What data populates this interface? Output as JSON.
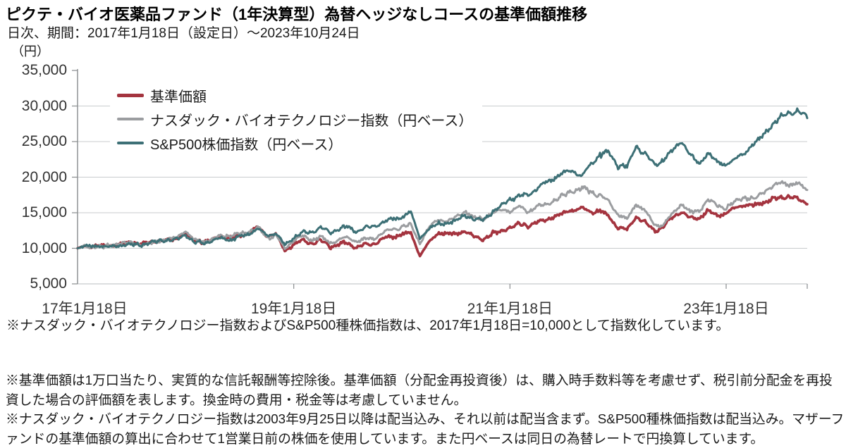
{
  "title": "ピクテ・バイオ医薬品ファンド（1年決算型）為替ヘッジなしコースの基準価額推移",
  "subtitle": "日次、期間：2017年1月18日（設定日）～2023年10月24日",
  "y_unit": "（円）",
  "notes": {
    "index_note": "※ナスダック・バイオテクノロジー指数およびS&P500種株価指数は、2017年1月18日=10,000として指数化しています。",
    "nav_note": "※基準価額は1万口当たり、実質的な信託報酬等控除後。基準価額（分配金再投資後）は、購入時手数料等を考慮せず、税引前分配金を再投資した場合の評価額を表します。換金時の費用・税金等は考慮していません。",
    "dividend_note": "※ナスダック・バイオテクノロジー指数は2003年9月25日以降は配当込み、それ以前は配当含まず。S&P500種株価指数は配当込み。マザーファンドの基準価額の算出に合わせて1営業日前の株価を使用しています。また円ベースは同日の為替レートで円換算しています。"
  },
  "chart_data": {
    "type": "line",
    "x_start": "2017-01-18",
    "x_end": "2023-10-24",
    "x_tick_labels": [
      "17年1月18日",
      "19年1月18日",
      "21年1月18日",
      "23年1月18日"
    ],
    "x_tick_month_offsets": [
      0,
      24,
      48,
      72
    ],
    "y_ticks": [
      5000,
      10000,
      15000,
      20000,
      25000,
      30000,
      35000
    ],
    "ylim": [
      5000,
      35000
    ],
    "grid_color": "#c8cbcd",
    "axis_color": "#898c8e",
    "series": [
      {
        "key": "nav",
        "name": "基準価額",
        "color": "#a4343f",
        "line_width": 3.6,
        "monthly_values": [
          10000,
          10150,
          10320,
          10280,
          10560,
          10720,
          10850,
          10520,
          10720,
          11020,
          11220,
          11350,
          12250,
          11000,
          10850,
          11100,
          11500,
          11600,
          11700,
          12200,
          13000,
          11700,
          12000,
          9600,
          10600,
          11100,
          10800,
          11000,
          10300,
          10500,
          10700,
          10200,
          10500,
          10700,
          11300,
          11700,
          11900,
          12200,
          8950,
          10800,
          12100,
          12000,
          12100,
          12400,
          11800,
          11200,
          12000,
          12300,
          12800,
          13500,
          13200,
          13800,
          14000,
          14400,
          14800,
          15400,
          15600,
          15300,
          15400,
          14400,
          12900,
          12500,
          14500,
          13600,
          12600,
          13000,
          14300,
          15200,
          14100,
          14300,
          15200,
          14700,
          14900,
          15700,
          16100,
          16000,
          16400,
          16800,
          17100,
          17200,
          16900,
          16200
        ]
      },
      {
        "key": "nasdaq_biotech_jpy",
        "name": "ナスダック・バイオテクノロジー指数（円ベース）",
        "color": "#9b9da0",
        "line_width": 3.0,
        "monthly_values": [
          10000,
          10180,
          10350,
          10230,
          10480,
          10640,
          10780,
          10470,
          10700,
          11050,
          11300,
          11500,
          12400,
          11150,
          11000,
          11300,
          11700,
          11800,
          11900,
          12400,
          12900,
          11600,
          11900,
          9900,
          11100,
          11600,
          11300,
          11600,
          10900,
          11200,
          11400,
          10900,
          11200,
          11500,
          12300,
          12800,
          13000,
          13300,
          10600,
          12900,
          14100,
          13900,
          14500,
          15100,
          14300,
          14000,
          14900,
          15400,
          15300,
          15900,
          15100,
          15900,
          16000,
          16900,
          17400,
          18200,
          18400,
          17900,
          17500,
          16500,
          14900,
          14000,
          16300,
          15200,
          13300,
          13300,
          14800,
          16400,
          15000,
          15200,
          16700,
          16000,
          15600,
          16700,
          17300,
          16900,
          17700,
          18400,
          19200,
          19000,
          19300,
          18200
        ]
      },
      {
        "key": "sp500_jpy",
        "name": "S&P500株価指数（円ベース）",
        "color": "#3d7076",
        "line_width": 3.0,
        "monthly_values": [
          10000,
          10250,
          10300,
          10180,
          10380,
          10480,
          10580,
          10380,
          10680,
          10980,
          11180,
          11300,
          12000,
          10750,
          10700,
          11000,
          11300,
          11300,
          11600,
          12200,
          12700,
          11800,
          12100,
          10400,
          11600,
          12200,
          12400,
          12900,
          12200,
          12700,
          13000,
          12400,
          12900,
          13100,
          13700,
          14100,
          14300,
          15200,
          11400,
          12700,
          13400,
          13500,
          13900,
          14700,
          14200,
          14000,
          15000,
          15800,
          16900,
          17300,
          17600,
          18500,
          19200,
          19900,
          20400,
          20900,
          20100,
          21900,
          23400,
          23300,
          21600,
          21300,
          24400,
          23300,
          21900,
          22500,
          23600,
          25100,
          23000,
          21900,
          23400,
          22200,
          21700,
          22600,
          23350,
          24600,
          25800,
          27200,
          28400,
          28900,
          29300,
          28300
        ]
      }
    ]
  }
}
